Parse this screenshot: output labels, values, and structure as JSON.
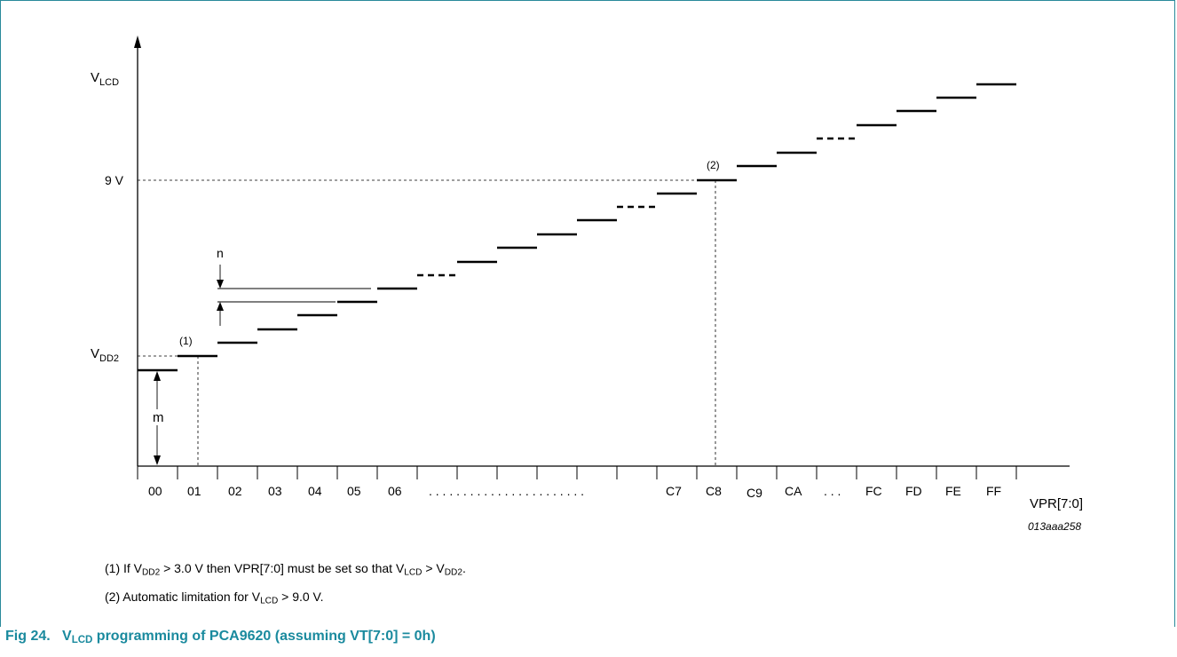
{
  "y_axis": {
    "label_main": "V",
    "label_sub": "LCD",
    "levels": {
      "vdd2_main": "V",
      "vdd2_sub": "DD2",
      "nine_v": "9 V"
    }
  },
  "x_axis": {
    "label": "VPR[7:0]",
    "ticks": [
      "00",
      "01",
      "02",
      "03",
      "04",
      "05",
      "06",
      "C7",
      "C8",
      "C9",
      "CA",
      "FC",
      "FD",
      "FE",
      "FF"
    ],
    "ellipsis_long": ". . . . . . . . . . . . . . . . . . . . . . .",
    "ellipsis_short": ". . ."
  },
  "markers": {
    "m": "m",
    "n": "n",
    "note1_ref": "(1)",
    "note2_ref": "(2)"
  },
  "figure_id": "013aaa258",
  "notes": {
    "note1": {
      "a": "(1) If V",
      "a_sub": "DD2",
      "b": " > 3.0 V then VPR[7:0] must be set so that V",
      "b_sub": "LCD",
      "c": " > V",
      "c_sub": "DD2",
      "d": "."
    },
    "note2": {
      "a": "(2) Automatic limitation for V",
      "a_sub": "LCD",
      "b": " > 9.0 V."
    }
  },
  "caption": {
    "a": "Fig 24.   V",
    "a_sub": "LCD",
    "b": " programming of PCA9620 (assuming VT[7:0] = 0h)"
  },
  "colors": {
    "frame": "#2a8a9a",
    "caption": "#1a8a9e"
  }
}
